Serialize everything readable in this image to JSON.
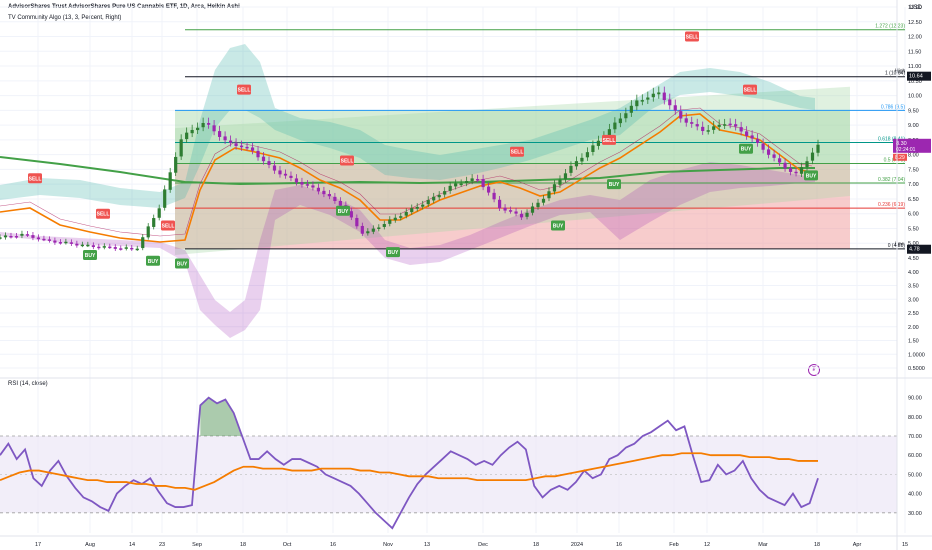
{
  "header": {
    "title": "AdvisorShares Trust AdvisorShares Pure US Cannabis ETF, 1D, Arca, Heikin Ashi",
    "indicator": "TV Community Algo",
    "indicator_params": "(13, 3, Percent, Right)",
    "currency": "USD"
  },
  "rsi_panel": {
    "label": "RSI (14, close)"
  },
  "colors": {
    "bull": "#2e7d32",
    "bear": "#9c27b0",
    "ema": "#f57c00",
    "slow_ma": "#43a047",
    "fib_green_zone": "#a5d6a7",
    "fib_red_zone": "#ef9a9a",
    "rsi_line": "#7e57c2",
    "rsi_band": "#ede7f6",
    "buy_badge": "#43a047",
    "sell_badge": "#ef5350"
  },
  "chart_data": [
    {
      "type": "candlestick",
      "title": "AdvisorShares Trust AdvisorShares Pure US Cannabis ETF, 1D, Arca, Heikin Ashi",
      "y_scale": "log",
      "ylim": [
        0.5,
        13.0
      ],
      "y_ticks": [
        13.0,
        12.5,
        12.0,
        11.5,
        11.0,
        10.5,
        10.0,
        9.5,
        9.0,
        8.5,
        8.0,
        7.5,
        7.0,
        6.5,
        6.0,
        5.5,
        5.0,
        4.5,
        4.0,
        3.5,
        3.0,
        2.5,
        2.0,
        1.5,
        1.0,
        0.5
      ],
      "y_tick_labels": [
        "13.00",
        "12.50",
        "12.00",
        "11.50",
        "11.00",
        "10.50",
        "10.00",
        "9.50",
        "9.00",
        "8.50",
        "8.00",
        "7.50",
        "7.00",
        "6.50",
        "6.00",
        "5.50",
        "5.00",
        "4.50",
        "4.00",
        "3.50",
        "3.00",
        "2.50",
        "2.00",
        "1.50",
        "1.0000",
        "0.5000"
      ],
      "x_tick_labels": [
        "17",
        "Aug",
        "14",
        "23",
        "Sep",
        "18",
        "Oct",
        "16",
        "Nov",
        "13",
        "Dec",
        "18",
        "2024",
        "16",
        "Feb",
        "12",
        "Mar",
        "18",
        "Apr",
        "15"
      ],
      "price_path": [
        {
          "date": "Jul 10",
          "close": 5.2
        },
        {
          "date": "Jul 17",
          "close": 5.3
        },
        {
          "date": "Jul 24",
          "close": 5.1
        },
        {
          "date": "Aug 1",
          "close": 5.0
        },
        {
          "date": "Aug 14",
          "close": 4.9
        },
        {
          "date": "Aug 23",
          "close": 4.85
        },
        {
          "date": "Aug 29",
          "close": 4.8
        },
        {
          "date": "Aug 31",
          "close": 6.2
        },
        {
          "date": "Sep 5",
          "close": 8.6
        },
        {
          "date": "Sep 12",
          "close": 9.1
        },
        {
          "date": "Sep 18",
          "close": 8.4
        },
        {
          "date": "Sep 26",
          "close": 8.2
        },
        {
          "date": "Oct 3",
          "close": 7.5
        },
        {
          "date": "Oct 10",
          "close": 7.1
        },
        {
          "date": "Oct 16",
          "close": 6.8
        },
        {
          "date": "Oct 24",
          "close": 6.3
        },
        {
          "date": "Nov 1",
          "close": 5.3
        },
        {
          "date": "Nov 8",
          "close": 5.7
        },
        {
          "date": "Nov 13",
          "close": 6.1
        },
        {
          "date": "Nov 22",
          "close": 6.5
        },
        {
          "date": "Dec 1",
          "close": 7.0
        },
        {
          "date": "Dec 8",
          "close": 7.2
        },
        {
          "date": "Dec 13",
          "close": 6.2
        },
        {
          "date": "Dec 20",
          "close": 5.9
        },
        {
          "date": "2024",
          "close": 6.6
        },
        {
          "date": "Jan 8",
          "close": 7.5
        },
        {
          "date": "Jan 16",
          "close": 8.2
        },
        {
          "date": "Jan 24",
          "close": 9.0
        },
        {
          "date": "Feb 1",
          "close": 9.8
        },
        {
          "date": "Feb 7",
          "close": 10.1
        },
        {
          "date": "Feb 12",
          "close": 9.2
        },
        {
          "date": "Feb 20",
          "close": 8.8
        },
        {
          "date": "Feb 27",
          "close": 9.1
        },
        {
          "date": "Mar 5",
          "close": 8.6
        },
        {
          "date": "Mar 11",
          "close": 7.9
        },
        {
          "date": "Mar 14",
          "close": 7.3
        },
        {
          "date": "Mar 18",
          "close": 8.3
        }
      ],
      "last_price": {
        "value": "8.30",
        "countdown": "02:24:01",
        "prev": "8.29"
      },
      "fib_levels": [
        {
          "level": "1.272",
          "price": "12.23",
          "label": "1.272 (12.23)",
          "price_value": 12.23
        },
        {
          "level": "1",
          "price": "10.64",
          "label": "1 (10.64)",
          "price_value": 10.64
        },
        {
          "level": "0.786",
          "price": "9.5",
          "label": "0.786 (9.5)",
          "price_value": 9.5
        },
        {
          "level": "0.618",
          "price": "8.41",
          "label": "0.618 (8.41)",
          "price_value": 8.41
        },
        {
          "level": "0.5",
          "price": "7.70",
          "label": "0.5 (7.70)",
          "price_value": 7.7
        },
        {
          "level": "0.382",
          "price": "7.04",
          "label": "0.382 (7.04)",
          "price_value": 7.04
        },
        {
          "level": "0.236",
          "price": "6.19",
          "label": "0.236 (6.19)",
          "price_value": 6.19
        },
        {
          "level": "0",
          "price": "4.81",
          "label": "0 (4.81)",
          "price_value": 4.81
        }
      ],
      "price_badges": [
        {
          "text": "High",
          "price": "10.64",
          "price_value": 10.64
        },
        {
          "text": "8.30",
          "price": "8.30",
          "price_value": 8.3
        },
        {
          "text": "Low",
          "price": "4.78",
          "price_value": 4.78
        }
      ],
      "signals": [
        {
          "type": "SELL",
          "date": "Jul 12",
          "price": 7.2
        },
        {
          "type": "SELL",
          "date": "Jul 31",
          "price": 6.0
        },
        {
          "type": "BUY",
          "date": "Aug 8",
          "price": 4.6
        },
        {
          "type": "BUY",
          "date": "Aug 23",
          "price": 4.4
        },
        {
          "type": "SELL",
          "date": "Aug 28",
          "price": 5.6
        },
        {
          "type": "BUY",
          "date": "Aug 30",
          "price": 4.3
        },
        {
          "type": "SELL",
          "date": "Sep 12",
          "price": 10.2
        },
        {
          "type": "SELL",
          "date": "Oct 14",
          "price": 7.8
        },
        {
          "type": "BUY",
          "date": "Oct 18",
          "price": 6.1
        },
        {
          "type": "BUY",
          "date": "Nov 3",
          "price": 4.7
        },
        {
          "type": "SELL",
          "date": "Dec 13",
          "price": 8.1
        },
        {
          "type": "BUY",
          "date": "Dec 28",
          "price": 5.6
        },
        {
          "type": "SELL",
          "date": "Jan 10",
          "price": 8.5
        },
        {
          "type": "BUY",
          "date": "Jan 12",
          "price": 7.0
        },
        {
          "type": "SELL",
          "date": "Feb 5",
          "price": 12.0
        },
        {
          "type": "SELL",
          "date": "Mar 1",
          "price": 10.2
        },
        {
          "type": "BUY",
          "date": "Mar 4",
          "price": 8.2
        },
        {
          "type": "BUY",
          "date": "Mar 19",
          "price": 7.3
        }
      ]
    },
    {
      "type": "line",
      "title": "RSI (14, close)",
      "ylim": [
        20,
        95
      ],
      "y_ticks": [
        90,
        80,
        70,
        60,
        50,
        40,
        30
      ],
      "y_tick_labels": [
        "90.00",
        "80.00",
        "70.00",
        "60.00",
        "50.00",
        "40.00",
        "30.00"
      ],
      "bands": [
        30,
        70
      ],
      "x_tick_labels": [
        "17",
        "Aug",
        "14",
        "23",
        "Sep",
        "18",
        "Oct",
        "16",
        "Nov",
        "13",
        "Dec",
        "18",
        "2024",
        "16",
        "Feb",
        "12",
        "Mar",
        "18",
        "Apr",
        "15"
      ],
      "series": [
        {
          "values": [
            60,
            66,
            58,
            63,
            48,
            44,
            52,
            57,
            49,
            43,
            38,
            36,
            33,
            31,
            40,
            44,
            47,
            45,
            48,
            41,
            35,
            33,
            33,
            34,
            86,
            90,
            87,
            89,
            82,
            70,
            58,
            58,
            62,
            58,
            55,
            58,
            58,
            56,
            54,
            50,
            48,
            46,
            44,
            40,
            35,
            30,
            26,
            22,
            30,
            38,
            45,
            50,
            54,
            58,
            62,
            60,
            58,
            55,
            57,
            55,
            60,
            64,
            67,
            63,
            44,
            38,
            42,
            44,
            42,
            46,
            52,
            48,
            50,
            58,
            60,
            64,
            66,
            70,
            72,
            75,
            78,
            73,
            75,
            60,
            46,
            47,
            55,
            50,
            52,
            57,
            48,
            42,
            38,
            36,
            34,
            40,
            33,
            35,
            48
          ]
        },
        {
          "values": [
            47,
            49,
            51,
            52,
            52,
            51,
            50,
            49,
            48,
            47,
            47,
            46,
            46,
            46,
            45,
            45,
            44,
            44,
            43,
            43,
            42,
            44,
            46,
            49,
            52,
            54,
            54,
            53,
            53,
            53,
            52,
            52,
            52,
            53,
            53,
            53,
            53,
            52,
            52,
            51,
            51,
            50,
            49,
            49,
            49,
            48,
            48,
            48,
            48,
            47,
            47,
            47,
            47,
            47,
            47,
            48,
            49,
            49,
            50,
            51,
            52,
            53,
            54,
            55,
            56,
            57,
            58,
            59,
            60,
            60,
            61,
            61,
            61,
            60,
            60,
            60,
            60,
            59,
            59,
            59,
            58,
            58,
            57,
            57,
            57
          ]
        }
      ]
    }
  ]
}
